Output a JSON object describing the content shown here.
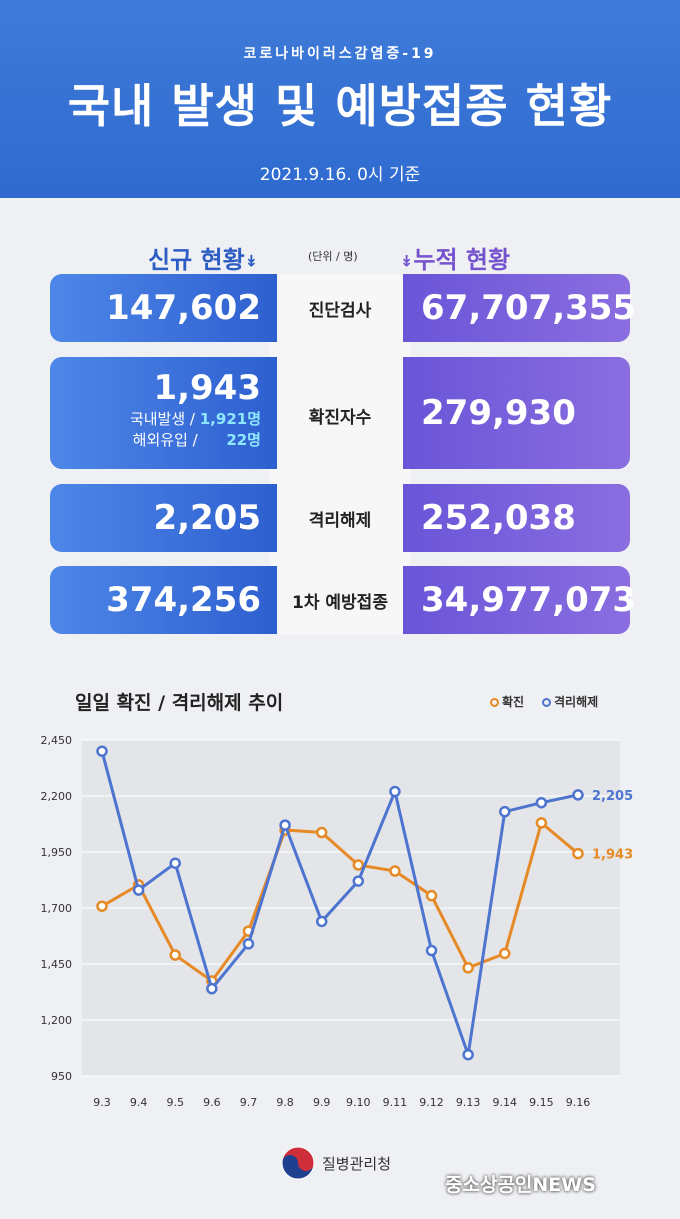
{
  "header": {
    "subtitle": "코로나바이러스감염증-19",
    "title": "국내 발생 및 예방접종 현황",
    "date": "2021.9.16. 0시 기준"
  },
  "columns": {
    "left": "신규 현황",
    "right": "누적 현황",
    "unit": "(단위 / 명)"
  },
  "rows": [
    {
      "label": "진단검사",
      "new": "147,602",
      "total": "67,707,355"
    },
    {
      "label": "확진자수",
      "new": "1,943",
      "total": "279,930",
      "domestic_label": "국내발생 /",
      "domestic_value": "1,921명",
      "overseas_label": "해외유입 /",
      "overseas_value": "22명"
    },
    {
      "label": "격리해제",
      "new": "2,205",
      "total": "252,038"
    },
    {
      "label": "1차 예방접종",
      "new": "374,256",
      "total": "34,977,073"
    }
  ],
  "colors": {
    "confirmed": "#e58a26",
    "released": "#4d74cf",
    "plot_bg": "#e3e5e8",
    "grid": "#ffffff"
  },
  "chart_data": {
    "type": "line",
    "title": "일일 확진 / 격리해제 추이",
    "categories": [
      "9.3",
      "9.4",
      "9.5",
      "9.6",
      "9.7",
      "9.8",
      "9.9",
      "9.10",
      "9.11",
      "9.12",
      "9.13",
      "9.14",
      "9.15",
      "9.16"
    ],
    "yticks": [
      "2,450",
      "2,200",
      "1,950",
      "1,700",
      "1,450",
      "1,200",
      "950"
    ],
    "ylim": [
      950,
      2450
    ],
    "grid": true,
    "legend": "top-right",
    "series": [
      {
        "name": "확진",
        "values": [
          1708,
          1803,
          1490,
          1374,
          1597,
          2048,
          2037,
          1892,
          1865,
          1755,
          1433,
          1497,
          2080,
          1943
        ],
        "end_label": "1,943"
      },
      {
        "name": "격리해제",
        "values": [
          2400,
          1780,
          1900,
          1340,
          1540,
          2070,
          1640,
          1820,
          2220,
          1510,
          1045,
          2130,
          2170,
          2205
        ],
        "end_label": "2,205"
      }
    ]
  },
  "footer": {
    "agency": "질병관리청",
    "news": "중소상공인NEWS"
  }
}
